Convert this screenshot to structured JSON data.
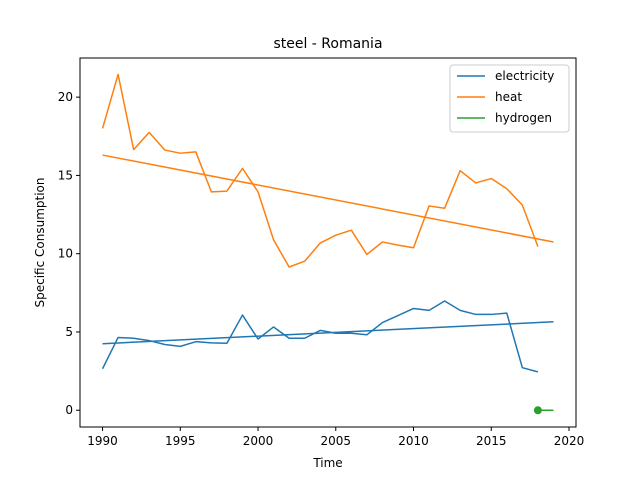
{
  "chart_data": {
    "type": "line",
    "title": "steel - Romania",
    "xlabel": "Time",
    "ylabel": "Specific Consumption",
    "xlim": [
      1988.55,
      2020.45
    ],
    "ylim": [
      -1.07,
      22.5
    ],
    "xticks": [
      1990,
      1995,
      2000,
      2005,
      2010,
      2015,
      2020
    ],
    "yticks": [
      0,
      5,
      10,
      15,
      20
    ],
    "grid": false,
    "legend_position": "top-right",
    "series": [
      {
        "name": "electricity",
        "color": "#1f77b4",
        "x": [
          1990,
          1991,
          1992,
          1993,
          1994,
          1995,
          1996,
          1997,
          1998,
          1999,
          2000,
          2001,
          2002,
          2003,
          2004,
          2005,
          2006,
          2007,
          2008,
          2009,
          2010,
          2011,
          2012,
          2013,
          2014,
          2015,
          2016,
          2017,
          2018
        ],
        "y": [
          2.65,
          4.65,
          4.6,
          4.45,
          4.2,
          4.08,
          4.38,
          4.3,
          4.28,
          6.08,
          4.55,
          5.32,
          4.6,
          4.6,
          5.1,
          4.92,
          4.92,
          4.82,
          5.6,
          6.05,
          6.5,
          6.38,
          6.98,
          6.38,
          6.12,
          6.12,
          6.2,
          2.72,
          2.45
        ]
      },
      {
        "name": "heat",
        "color": "#ff7f0e",
        "x": [
          1990,
          1991,
          1992,
          1993,
          1994,
          1995,
          1996,
          1997,
          1998,
          1999,
          2000,
          2001,
          2002,
          2003,
          2004,
          2005,
          2006,
          2007,
          2008,
          2009,
          2010,
          2011,
          2012,
          2013,
          2014,
          2015,
          2016,
          2017,
          2018
        ],
        "y": [
          18.0,
          21.45,
          16.65,
          17.75,
          16.62,
          16.42,
          16.5,
          13.95,
          14.0,
          15.45,
          13.95,
          10.88,
          9.15,
          9.52,
          10.68,
          11.18,
          11.5,
          9.95,
          10.75,
          10.55,
          10.38,
          13.05,
          12.9,
          15.3,
          14.52,
          14.8,
          14.15,
          13.1,
          10.45
        ]
      },
      {
        "name": "hydrogen",
        "color": "#2ca02c",
        "x": [
          2018,
          2019
        ],
        "y": [
          0.0,
          0.0
        ]
      }
    ],
    "trend_lines": [
      {
        "series": "electricity",
        "x": [
          1990,
          2019
        ],
        "y": [
          4.25,
          5.65
        ]
      },
      {
        "series": "heat",
        "x": [
          1990,
          2019
        ],
        "y": [
          16.3,
          10.75
        ]
      }
    ],
    "markers": [
      {
        "series": "hydrogen",
        "x": 2018,
        "y": 0.0
      }
    ]
  }
}
